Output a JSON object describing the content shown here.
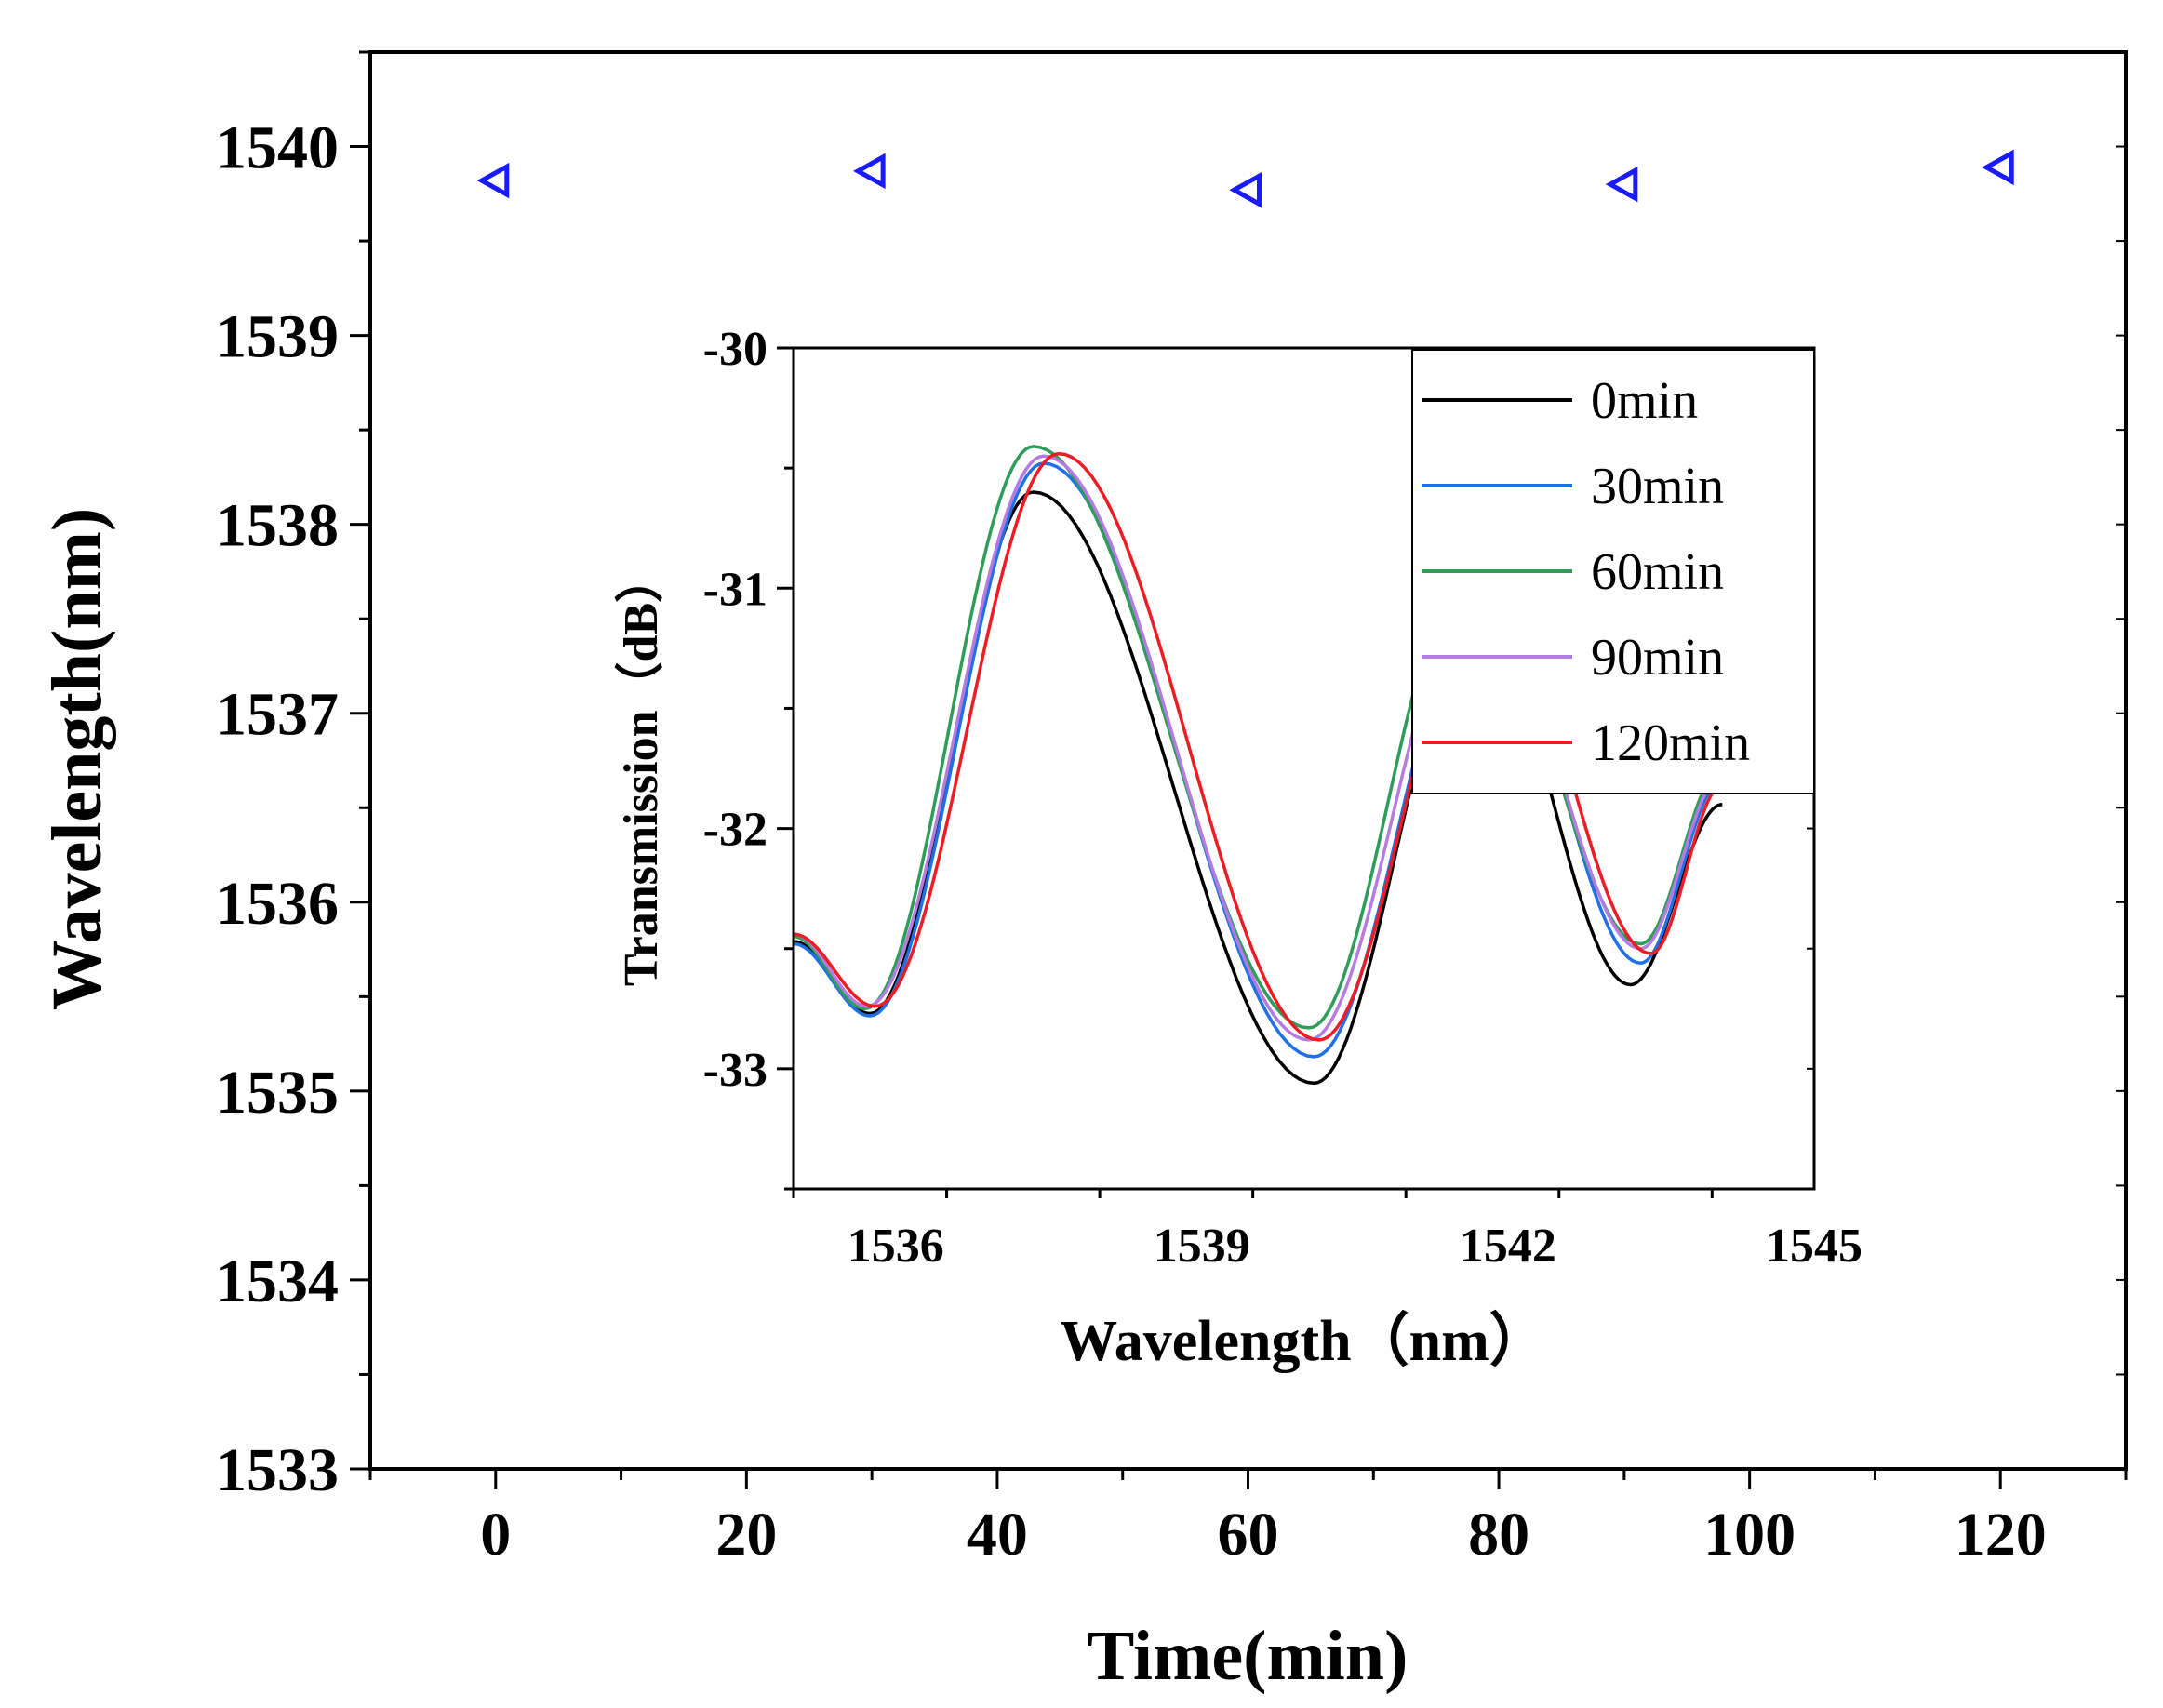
{
  "chart_data": [
    {
      "id": "main",
      "type": "scatter",
      "title": "",
      "xlabel": "Time(min)",
      "ylabel": "Wavelength(nm)",
      "xlim": [
        -10,
        130
      ],
      "ylim": [
        1533,
        1540.5
      ],
      "xticks": [
        "0",
        "20",
        "40",
        "60",
        "80",
        "100",
        "120"
      ],
      "yticks": [
        "1533",
        "1534",
        "1535",
        "1536",
        "1537",
        "1538",
        "1539",
        "1540"
      ],
      "marker": "left-triangle",
      "color": "#1a1aff",
      "series": [
        {
          "points": [
            {
              "x": 0,
              "y": 1539.82
            },
            {
              "x": 30,
              "y": 1539.87
            },
            {
              "x": 60,
              "y": 1539.77
            },
            {
              "x": 90,
              "y": 1539.8
            },
            {
              "x": 120,
              "y": 1539.89
            }
          ]
        }
      ]
    },
    {
      "id": "inset",
      "type": "line",
      "xlabel": "Wavelength（nm）",
      "ylabel": "Transmission（dB）",
      "xlim": [
        1535,
        1545
      ],
      "ylim": [
        -33.5,
        -30
      ],
      "xticks": [
        "1536",
        "1539",
        "1542",
        "1545"
      ],
      "yticks": [
        "-30",
        "-31",
        "-32",
        "-33"
      ],
      "legend_position": "top-right",
      "series": [
        {
          "name": "0min",
          "color": "#000000",
          "p1": {
            "x": 1535.75,
            "y": -32.77
          },
          "p2": {
            "x": 1537.35,
            "y": -30.6
          },
          "p3": {
            "x": 1540.1,
            "y": -33.06
          },
          "p4": {
            "x": 1541.7,
            "y": -31.15
          },
          "p5": {
            "x": 1543.2,
            "y": -32.65
          },
          "y_end": -31.9
        },
        {
          "name": "30min",
          "color": "#1f6fe5",
          "p1": {
            "x": 1535.75,
            "y": -32.78
          },
          "p2": {
            "x": 1537.45,
            "y": -30.48
          },
          "p3": {
            "x": 1540.1,
            "y": -32.95
          },
          "p4": {
            "x": 1541.75,
            "y": -31.05
          },
          "p5": {
            "x": 1543.3,
            "y": -32.56
          },
          "y_end": -31.8
        },
        {
          "name": "60min",
          "color": "#2e9d5a",
          "p1": {
            "x": 1535.7,
            "y": -32.75
          },
          "p2": {
            "x": 1537.35,
            "y": -30.41
          },
          "p3": {
            "x": 1540.05,
            "y": -32.83
          },
          "p4": {
            "x": 1541.6,
            "y": -30.95
          },
          "p5": {
            "x": 1543.3,
            "y": -32.48
          },
          "y_end": -31.75
        },
        {
          "name": "90min",
          "color": "#b57be0",
          "p1": {
            "x": 1535.72,
            "y": -32.74
          },
          "p2": {
            "x": 1537.45,
            "y": -30.45
          },
          "p3": {
            "x": 1540.05,
            "y": -32.88
          },
          "p4": {
            "x": 1541.7,
            "y": -31.0
          },
          "p5": {
            "x": 1543.3,
            "y": -32.5
          },
          "y_end": -31.78
        },
        {
          "name": "120min",
          "color": "#ee1c25",
          "p1": {
            "x": 1535.8,
            "y": -32.74
          },
          "p2": {
            "x": 1537.6,
            "y": -30.44
          },
          "p3": {
            "x": 1540.15,
            "y": -32.88
          },
          "p4": {
            "x": 1541.8,
            "y": -31.0
          },
          "p5": {
            "x": 1543.4,
            "y": -32.52
          },
          "y_end": -31.82
        }
      ]
    }
  ]
}
